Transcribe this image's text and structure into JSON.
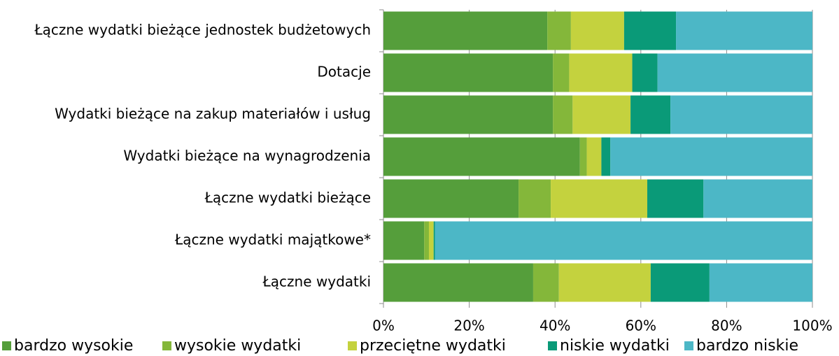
{
  "chart_data": {
    "type": "stacked_barh",
    "categories": [
      "Łączne wydatki bieżące jednostek budżetowych",
      "Dotacje",
      "Wydatki bieżące na zakup materiałów i usług",
      "Wydatki bieżące na wynagrodzenia",
      "Łączne wydatki bieżące",
      "Łączne wydatki majątkowe*",
      "Łączne wydatki"
    ],
    "series": [
      {
        "name": "bardzo wysokie",
        "color": "#559e3b",
        "values": [
          38.2,
          39.5,
          39.5,
          45.8,
          31.5,
          9.5,
          34.9
        ]
      },
      {
        "name": "wysokie wydatki",
        "color": "#84b73a",
        "values": [
          5.5,
          3.8,
          4.6,
          1.6,
          7.5,
          1.1,
          6.0
        ]
      },
      {
        "name": "przeciętne wydatki",
        "color": "#c4d23e",
        "values": [
          12.4,
          14.7,
          13.5,
          3.4,
          22.5,
          1.1,
          21.4
        ]
      },
      {
        "name": "niskie wydatki",
        "color": "#0a9a78",
        "values": [
          12.1,
          5.9,
          9.3,
          2.1,
          13.1,
          0.3,
          13.7
        ]
      },
      {
        "name": "bardzo niskie",
        "color": "#4cb7c6",
        "values": [
          31.8,
          36.1,
          33.1,
          47.1,
          25.4,
          88.0,
          24.0
        ]
      }
    ],
    "xlim": [
      0,
      100
    ],
    "xticks": [
      {
        "value": 0,
        "label": "0%"
      },
      {
        "value": 20,
        "label": "20%"
      },
      {
        "value": 40,
        "label": "40%"
      },
      {
        "value": 60,
        "label": "60%"
      },
      {
        "value": 80,
        "label": "80%"
      },
      {
        "value": 100,
        "label": "100%"
      }
    ],
    "grid": true
  }
}
